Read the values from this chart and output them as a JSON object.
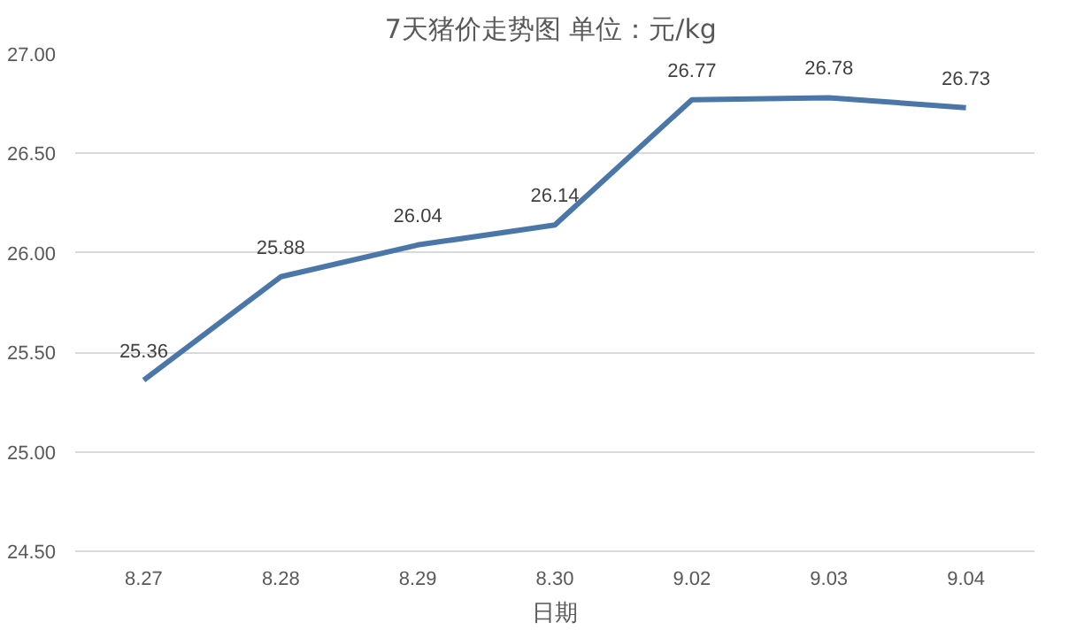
{
  "chart_data": {
    "type": "line",
    "title": "7天猪价走势图  单位：元/kg",
    "xlabel": "日期",
    "categories": [
      "8.27",
      "8.28",
      "8.29",
      "8.30",
      "9.02",
      "9.03",
      "9.04"
    ],
    "series": [
      {
        "color": "#4a76a8",
        "values": [
          25.36,
          25.88,
          26.04,
          26.14,
          26.77,
          26.78,
          26.73
        ]
      }
    ],
    "ylim": [
      24.5,
      27.0
    ],
    "yticks": [
      {
        "value": 24.5,
        "label": "24.50"
      },
      {
        "value": 25.0,
        "label": "25.00"
      },
      {
        "value": 25.5,
        "label": "25.50"
      },
      {
        "value": 26.0,
        "label": "26.00"
      },
      {
        "value": 26.5,
        "label": "26.50"
      },
      {
        "value": 27.0,
        "label": "27.00"
      }
    ],
    "grid": "y",
    "data_labels": true,
    "marker": "none",
    "line_style": "solid"
  }
}
